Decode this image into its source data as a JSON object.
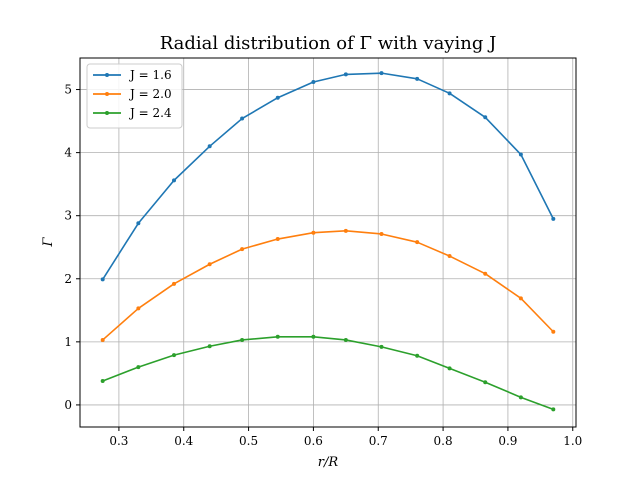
{
  "chart_data": {
    "type": "line",
    "title": "Radial distribution of Γ with vaying J",
    "xlabel": "r/R",
    "ylabel": "Γ",
    "xlim": [
      0.24,
      1.005
    ],
    "ylim": [
      -0.35,
      5.5
    ],
    "xticks": [
      0.3,
      0.4,
      0.5,
      0.6,
      0.7,
      0.8,
      0.9,
      1.0
    ],
    "xtick_labels": [
      "0.3",
      "0.4",
      "0.5",
      "0.6",
      "0.7",
      "0.8",
      "0.9",
      "1.0"
    ],
    "yticks": [
      0,
      1,
      2,
      3,
      4,
      5
    ],
    "ytick_labels": [
      "0",
      "1",
      "2",
      "3",
      "4",
      "5"
    ],
    "grid": true,
    "legend_position": "top-left",
    "x": [
      0.275,
      0.33,
      0.385,
      0.44,
      0.49,
      0.545,
      0.6,
      0.65,
      0.705,
      0.76,
      0.81,
      0.865,
      0.92,
      0.97
    ],
    "series": [
      {
        "name": "J = 1.6",
        "color": "#1f77b4",
        "values": [
          1.99,
          2.88,
          3.56,
          4.1,
          4.54,
          4.87,
          5.12,
          5.24,
          5.26,
          5.17,
          4.94,
          4.56,
          3.97,
          2.95
        ]
      },
      {
        "name": "J = 2.0",
        "color": "#ff7f0e",
        "values": [
          1.03,
          1.53,
          1.92,
          2.23,
          2.47,
          2.63,
          2.73,
          2.76,
          2.71,
          2.58,
          2.36,
          2.08,
          1.69,
          1.16
        ]
      },
      {
        "name": "J = 2.4",
        "color": "#2ca02c",
        "values": [
          0.38,
          0.6,
          0.79,
          0.93,
          1.03,
          1.08,
          1.08,
          1.03,
          0.92,
          0.78,
          0.58,
          0.36,
          0.12,
          -0.07
        ]
      }
    ]
  }
}
